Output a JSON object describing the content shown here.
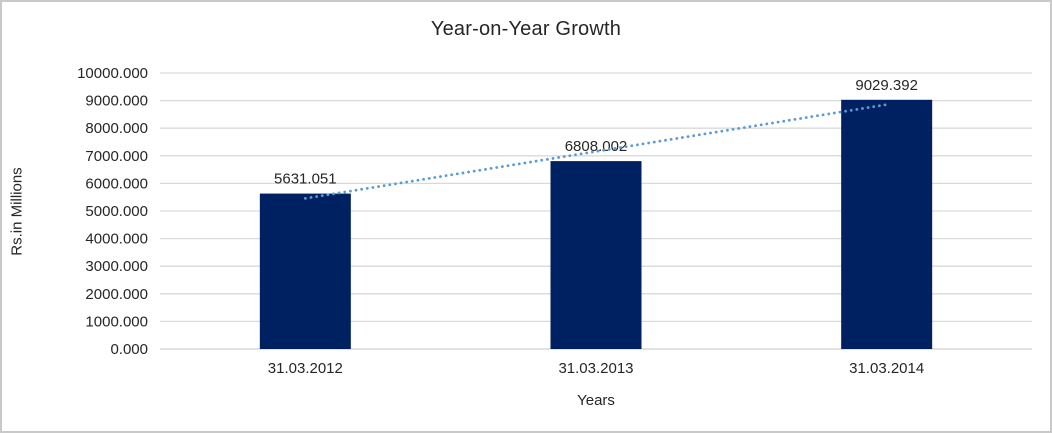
{
  "chart_data": {
    "type": "bar",
    "title": "Year-on-Year Growth",
    "categories": [
      "31.03.2012",
      "31.03.2013",
      "31.03.2014"
    ],
    "series": [
      {
        "name": "Rs.in Millions",
        "values": [
          5631.051,
          6808.002,
          9029.392
        ]
      }
    ],
    "data_labels": [
      "5631.051",
      "6808.002",
      "9029.392"
    ],
    "xlabel": "Years",
    "ylabel": "Rs.in Millions",
    "ylim": [
      0,
      10000
    ],
    "ytick_step": 1000,
    "ytick_decimals": 3,
    "grid": true,
    "legend_position": "none",
    "trendline": {
      "type": "linear",
      "style": "dotted"
    }
  },
  "colors": {
    "bar": "#002161",
    "trendline": "#5b9bd5",
    "gridline": "#d9d9d9",
    "axis_line": "#d0d0d0",
    "text": "#262626",
    "frame_border": "#c9c9c9",
    "background": "#ffffff"
  }
}
